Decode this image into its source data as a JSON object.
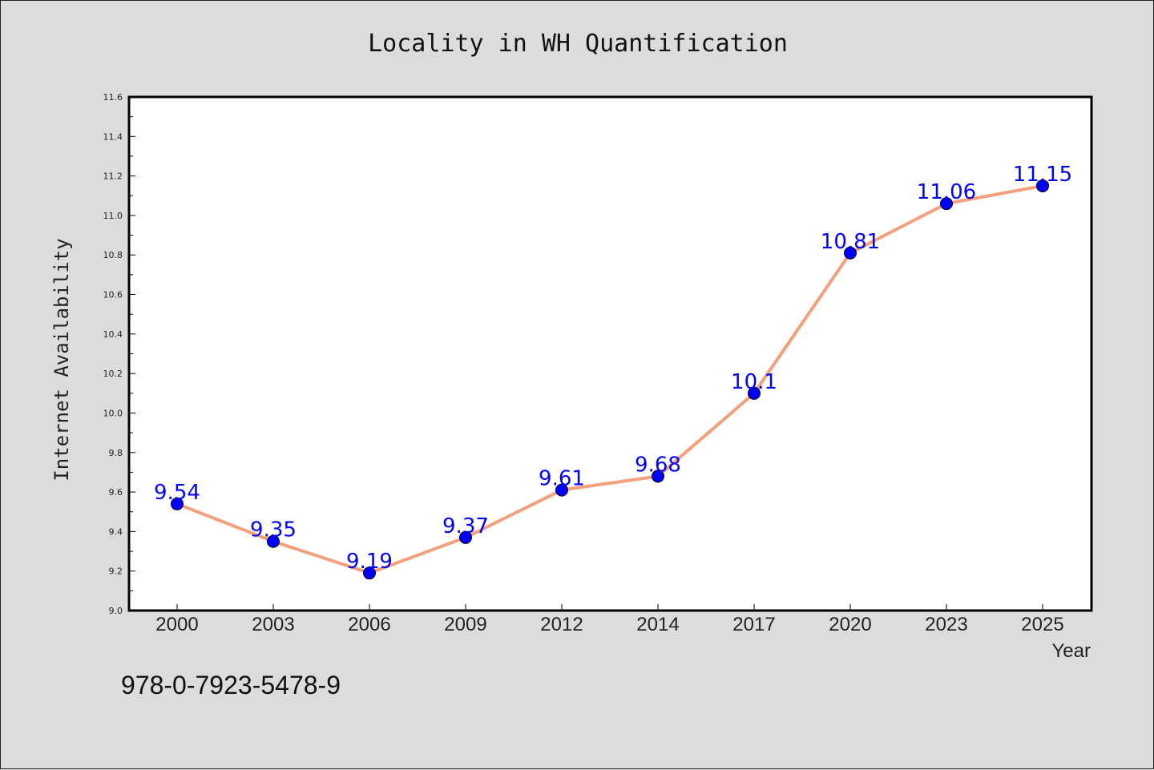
{
  "chart_data": {
    "type": "line",
    "title": "Locality in WH Quantification",
    "xlabel": "Year",
    "ylabel": "Internet Availability",
    "categories": [
      "2000",
      "2003",
      "2006",
      "2009",
      "2012",
      "2014",
      "2017",
      "2020",
      "2023",
      "2025"
    ],
    "series": [
      {
        "values": [
          9.54,
          9.35,
          9.19,
          9.37,
          9.61,
          9.68,
          10.1,
          10.81,
          11.06,
          11.15
        ],
        "data_labels": [
          "9.54",
          "9.35",
          "9.19",
          "9.37",
          "9.61",
          "9.68",
          "10.1",
          "10.81",
          "11.06",
          "11.15"
        ]
      }
    ],
    "ylim": [
      9.0,
      11.6
    ],
    "yticks": [
      "9.0",
      "9.2",
      "9.4",
      "9.6",
      "9.8",
      "10.0",
      "10.2",
      "10.4",
      "10.6",
      "10.8",
      "11.0",
      "11.2",
      "11.4",
      "11.6"
    ],
    "grid": false,
    "line_color": "#f4a07c",
    "marker_color": "#0000ff",
    "label_color": "#0000ff"
  },
  "annotation": "978-0-7923-5478-9"
}
